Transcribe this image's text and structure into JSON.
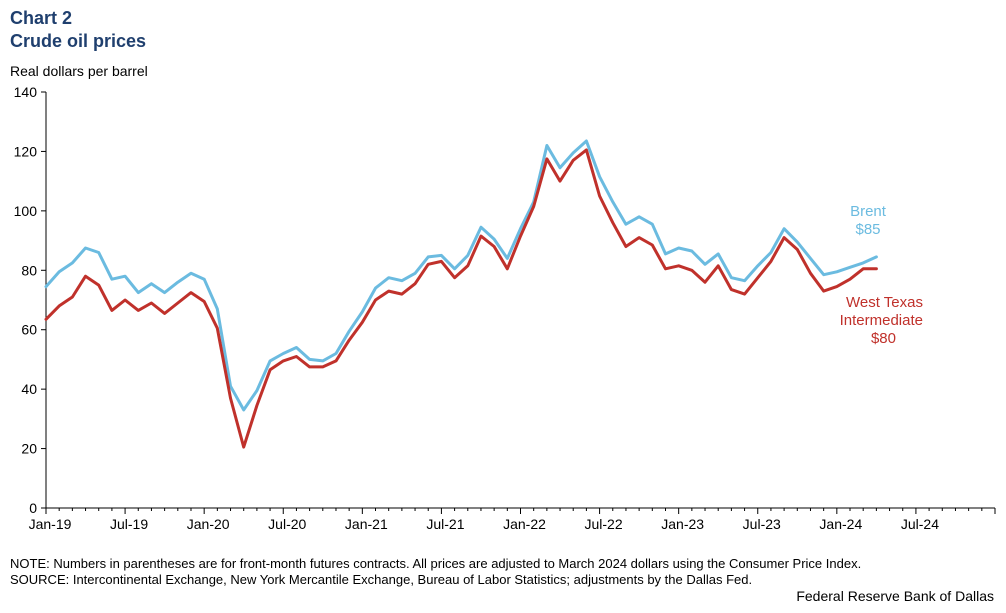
{
  "header": {
    "chart_number": "Chart 2",
    "title": "Crude oil prices",
    "y_unit": "Real dollars per barrel"
  },
  "footer": {
    "note": "NOTE: Numbers in parentheses are for front-month futures contracts. All prices are adjusted to March 2024 dollars using the Consumer Price Index.",
    "source": "SOURCE: Intercontinental Exchange, New York Mercantile Exchange, Bureau of Labor Statistics; adjustments by the Dallas Fed.",
    "credit": "Federal Reserve Bank of Dallas"
  },
  "colors": {
    "brent": "#6bbbe0",
    "wti": "#c0312b"
  },
  "chart_data": {
    "type": "line",
    "x_unit": "month",
    "x_ticks": [
      "Jan-19",
      "Jul-19",
      "Jan-20",
      "Jul-20",
      "Jan-21",
      "Jul-21",
      "Jan-22",
      "Jul-22",
      "Jan-23",
      "Jul-23",
      "Jan-24",
      "Jul-24"
    ],
    "xlim": [
      "2019-01",
      "2024-12"
    ],
    "ylim": [
      0,
      140
    ],
    "y_ticks": [
      0,
      20,
      40,
      60,
      80,
      100,
      120,
      140
    ],
    "grid": false,
    "x": [
      "2019-01",
      "2019-02",
      "2019-03",
      "2019-04",
      "2019-05",
      "2019-06",
      "2019-07",
      "2019-08",
      "2019-09",
      "2019-10",
      "2019-11",
      "2019-12",
      "2020-01",
      "2020-02",
      "2020-03",
      "2020-04",
      "2020-05",
      "2020-06",
      "2020-07",
      "2020-08",
      "2020-09",
      "2020-10",
      "2020-11",
      "2020-12",
      "2021-01",
      "2021-02",
      "2021-03",
      "2021-04",
      "2021-05",
      "2021-06",
      "2021-07",
      "2021-08",
      "2021-09",
      "2021-10",
      "2021-11",
      "2021-12",
      "2022-01",
      "2022-02",
      "2022-03",
      "2022-04",
      "2022-05",
      "2022-06",
      "2022-07",
      "2022-08",
      "2022-09",
      "2022-10",
      "2022-11",
      "2022-12",
      "2023-01",
      "2023-02",
      "2023-03",
      "2023-04",
      "2023-05",
      "2023-06",
      "2023-07",
      "2023-08",
      "2023-09",
      "2023-10",
      "2023-11",
      "2023-12",
      "2024-01",
      "2024-02",
      "2024-03",
      "2024-04"
    ],
    "series": [
      {
        "name": "Brent",
        "end_label": [
          "Brent",
          "$85"
        ],
        "values": [
          74.5,
          79.5,
          82.5,
          87.5,
          86,
          77,
          78,
          72.5,
          75.5,
          72.5,
          76,
          79,
          77,
          67,
          41,
          33,
          39.5,
          49.5,
          52,
          54,
          50,
          49.5,
          52,
          59.5,
          66,
          74,
          77.5,
          76.5,
          79,
          84.5,
          85,
          80.5,
          85,
          94.5,
          90.5,
          84,
          94,
          103,
          122,
          114.5,
          119.5,
          123.5,
          111.5,
          103,
          95.5,
          98,
          95.5,
          85.5,
          87.5,
          86.5,
          82,
          85.5,
          77.5,
          76.5,
          81.5,
          86,
          94,
          89.5,
          84,
          78.5,
          79.5,
          81,
          82.5,
          84.5
        ]
      },
      {
        "name": "West Texas Intermediate",
        "end_label": [
          "West Texas",
          "Intermediate",
          "$80"
        ],
        "values": [
          63.5,
          68,
          71,
          78,
          75,
          66.5,
          70,
          66.5,
          69,
          65.5,
          69,
          72.5,
          69.5,
          60.5,
          37,
          20.5,
          34.5,
          46.5,
          49.5,
          51,
          47.5,
          47.5,
          49.5,
          56.5,
          62.5,
          70,
          73,
          72,
          75.5,
          82,
          83,
          77.5,
          81.5,
          91.5,
          88,
          80.5,
          91.5,
          101.5,
          117.5,
          110,
          117,
          120.5,
          105,
          96,
          88,
          91,
          88.5,
          80.5,
          81.5,
          80,
          76,
          81.5,
          73.5,
          72,
          77.5,
          83,
          91,
          87,
          79,
          73,
          74.5,
          77,
          80.5,
          80.5
        ]
      }
    ]
  }
}
